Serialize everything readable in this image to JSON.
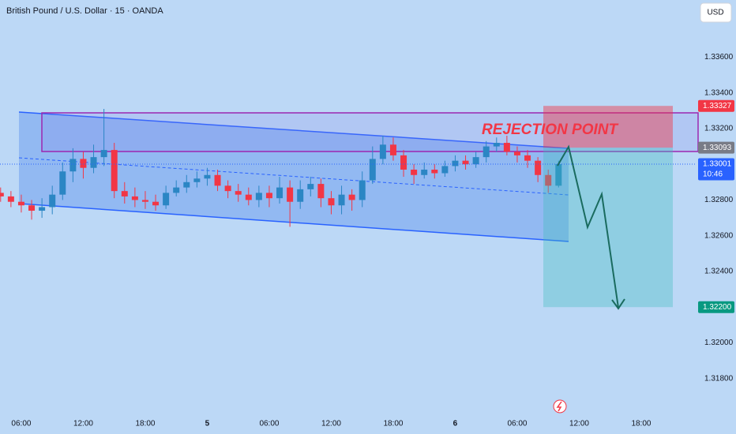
{
  "chart_data": {
    "type": "candlestick",
    "title": "British Pound / U.S. Dollar · 15 · OANDA",
    "currency": "USD",
    "annotation": "REJECTION POINT",
    "up_color": "#2b86c4",
    "down_color": "#f23645",
    "x": [
      4,
      5,
      6,
      7,
      8,
      9,
      10,
      11,
      12,
      13,
      14,
      15,
      16,
      17,
      18,
      19,
      20,
      21,
      22,
      23,
      24,
      25,
      26,
      27,
      28,
      29,
      30,
      31,
      32,
      33,
      34,
      35,
      36,
      37,
      38,
      39,
      40,
      41,
      42,
      43,
      44,
      45,
      46,
      47,
      48,
      49,
      50,
      51,
      52,
      53,
      54,
      55,
      56,
      57,
      58
    ],
    "open": [
      1.3284,
      1.3282,
      1.3279,
      1.3277,
      1.3274,
      1.3276,
      1.3283,
      1.3296,
      1.3303,
      1.3298,
      1.3304,
      1.3308,
      1.3285,
      1.3282,
      1.328,
      1.3279,
      1.3277,
      1.3284,
      1.3287,
      1.329,
      1.3292,
      1.3294,
      1.3288,
      1.3285,
      1.3283,
      1.328,
      1.3284,
      1.3281,
      1.3287,
      1.3279,
      1.3286,
      1.3289,
      1.3281,
      1.3277,
      1.3283,
      1.328,
      1.3291,
      1.3303,
      1.3311,
      1.3305,
      1.3297,
      1.3294,
      1.3297,
      1.3295,
      1.3299,
      1.3302,
      1.33,
      1.3304,
      1.331,
      1.3312,
      1.3307,
      1.3305,
      1.3302,
      1.3294,
      1.3288
    ],
    "high": [
      1.3287,
      1.3285,
      1.3283,
      1.328,
      1.3281,
      1.3288,
      1.3301,
      1.3309,
      1.3307,
      1.3311,
      1.3331,
      1.3312,
      1.329,
      1.3287,
      1.3285,
      1.3283,
      1.3288,
      1.3291,
      1.3294,
      1.3296,
      1.3298,
      1.3297,
      1.3291,
      1.3289,
      1.3287,
      1.3288,
      1.3288,
      1.3293,
      1.3291,
      1.3291,
      1.3293,
      1.3292,
      1.3285,
      1.3288,
      1.3286,
      1.3296,
      1.331,
      1.3316,
      1.3315,
      1.3308,
      1.33,
      1.3301,
      1.33,
      1.3302,
      1.3305,
      1.3305,
      1.3307,
      1.3313,
      1.3315,
      1.3316,
      1.331,
      1.3308,
      1.3304,
      1.3297,
      1.3302
    ],
    "low": [
      1.3279,
      1.3276,
      1.3273,
      1.3269,
      1.327,
      1.3272,
      1.328,
      1.329,
      1.3292,
      1.3295,
      1.3299,
      1.3281,
      1.3278,
      1.3276,
      1.3275,
      1.3274,
      1.3275,
      1.3282,
      1.3284,
      1.3287,
      1.3288,
      1.3285,
      1.3281,
      1.3279,
      1.3277,
      1.3276,
      1.3276,
      1.3278,
      1.3265,
      1.3275,
      1.3282,
      1.3276,
      1.3272,
      1.3272,
      1.3274,
      1.3276,
      1.3289,
      1.33,
      1.3302,
      1.3293,
      1.3289,
      1.3292,
      1.3292,
      1.3293,
      1.3296,
      1.3297,
      1.3298,
      1.3301,
      1.3307,
      1.3305,
      1.3301,
      1.3298,
      1.329,
      1.3284,
      1.3287
    ],
    "close": [
      1.3282,
      1.3279,
      1.3277,
      1.3274,
      1.3276,
      1.3283,
      1.3296,
      1.3303,
      1.3298,
      1.3304,
      1.3308,
      1.3285,
      1.3282,
      1.328,
      1.3279,
      1.3277,
      1.3284,
      1.3287,
      1.329,
      1.3292,
      1.3294,
      1.3288,
      1.3285,
      1.3283,
      1.328,
      1.3284,
      1.3281,
      1.3287,
      1.3279,
      1.3286,
      1.3289,
      1.3281,
      1.3277,
      1.3283,
      1.328,
      1.3291,
      1.3303,
      1.3311,
      1.3305,
      1.3297,
      1.3294,
      1.3297,
      1.3295,
      1.3299,
      1.3302,
      1.33,
      1.3304,
      1.331,
      1.3312,
      1.3307,
      1.3305,
      1.3302,
      1.3294,
      1.3288,
      1.33001
    ],
    "xlim": [
      3.94,
      71.2
    ],
    "xticks": [
      {
        "value": 6,
        "label": "06:00"
      },
      {
        "value": 12,
        "label": "12:00"
      },
      {
        "value": 18,
        "label": "18:00"
      },
      {
        "value": 24,
        "label": "5"
      },
      {
        "value": 30,
        "label": "06:00"
      },
      {
        "value": 36,
        "label": "12:00"
      },
      {
        "value": 42,
        "label": "18:00"
      },
      {
        "value": 48,
        "label": "6"
      },
      {
        "value": 54,
        "label": "06:00"
      },
      {
        "value": 60,
        "label": "12:00"
      },
      {
        "value": 66,
        "label": "18:00"
      }
    ],
    "ylim": [
      1.316,
      1.3392
    ],
    "yticks": [
      {
        "value": 1.318,
        "label": "1.31800"
      },
      {
        "value": 1.32,
        "label": "1.32000"
      },
      {
        "value": 1.322,
        "label": "1.32200"
      },
      {
        "value": 1.324,
        "label": "1.32400"
      },
      {
        "value": 1.326,
        "label": "1.32600"
      },
      {
        "value": 1.328,
        "label": "1.32800"
      },
      {
        "value": 1.33,
        "label": "1.33000"
      },
      {
        "value": 1.332,
        "label": "1.33200"
      },
      {
        "value": 1.334,
        "label": "1.33400"
      },
      {
        "value": 1.336,
        "label": "1.33600"
      }
    ],
    "grid": false,
    "price_labels": [
      {
        "value": 1.33327,
        "label": "1.33327",
        "color": "#f23645"
      },
      {
        "value": 1.33093,
        "label": "1.33093",
        "color": "#787b86"
      },
      {
        "value": 1.33001,
        "label": "1.33001",
        "color": "#2962ff",
        "countdown": "10:46"
      },
      {
        "value": 1.322,
        "label": "1.32200",
        "color": "#089981"
      }
    ]
  }
}
